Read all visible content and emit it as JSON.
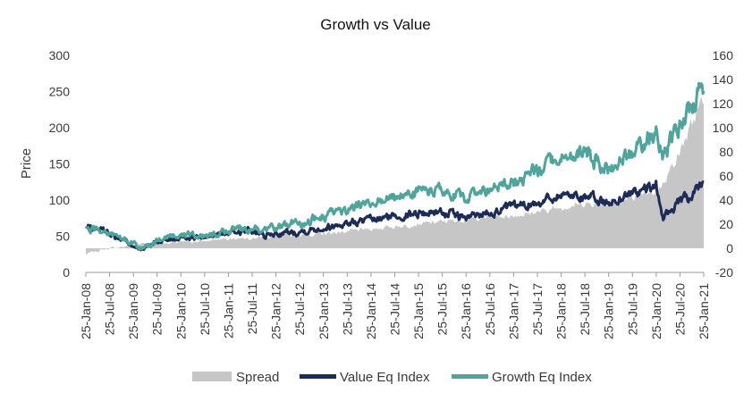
{
  "chart_data": {
    "type": "line",
    "title": "Growth vs Value",
    "ylabel": "Price",
    "y2label": "",
    "ylim": [
      0,
      300
    ],
    "y2lim": [
      -20,
      160
    ],
    "yticks": [
      0,
      50,
      100,
      150,
      200,
      250,
      300
    ],
    "y2ticks": [
      -20,
      0,
      20,
      40,
      60,
      80,
      100,
      120,
      140,
      160
    ],
    "xrange": [
      "2008-01-25",
      "2021-01-25"
    ],
    "xticks": [
      "25-Jan-08",
      "25-Jul-08",
      "25-Jan-09",
      "25-Jul-09",
      "25-Jan-10",
      "25-Jul-10",
      "25-Jan-11",
      "25-Jul-11",
      "25-Jan-12",
      "25-Jul-12",
      "25-Jan-13",
      "25-Jul-13",
      "25-Jan-14",
      "25-Jul-14",
      "25-Jan-15",
      "25-Jul-15",
      "25-Jan-16",
      "25-Jul-16",
      "25-Jan-17",
      "25-Jul-17",
      "25-Jan-18",
      "25-Jul-18",
      "25-Jan-19",
      "25-Jul-19",
      "25-Jan-20",
      "25-Jul-20",
      "25-Jan-21"
    ],
    "grid": false,
    "legend": "bottom",
    "colors": {
      "spread": "#c6c6c6",
      "value": "#1c2b57",
      "growth": "#4fa59c"
    },
    "series": [
      {
        "name": "Spread",
        "kind": "area",
        "axis": "right",
        "x": [
          "2008-01-25",
          "2008-04-25",
          "2008-07-25",
          "2008-10-25",
          "2009-01-25",
          "2009-03-10",
          "2009-07-25",
          "2010-01-25",
          "2010-07-25",
          "2011-01-25",
          "2011-07-25",
          "2012-01-25",
          "2012-07-25",
          "2013-01-25",
          "2013-07-25",
          "2014-01-25",
          "2014-07-25",
          "2015-01-25",
          "2015-07-25",
          "2016-01-25",
          "2016-07-25",
          "2017-01-25",
          "2017-07-25",
          "2018-01-25",
          "2018-07-25",
          "2019-01-25",
          "2019-07-25",
          "2020-01-25",
          "2020-03-20",
          "2020-07-25",
          "2020-10-25",
          "2021-01-25"
        ],
        "values": [
          -5,
          -2,
          0,
          1,
          3,
          4,
          4,
          5,
          6,
          8,
          9,
          10,
          11,
          12,
          14,
          16,
          18,
          20,
          22,
          24,
          26,
          27,
          30,
          34,
          37,
          38,
          42,
          46,
          55,
          80,
          102,
          125
        ]
      },
      {
        "name": "Value Eq Index",
        "kind": "line",
        "axis": "left",
        "x": [
          "2008-01-25",
          "2008-04-25",
          "2008-07-25",
          "2008-10-25",
          "2009-01-25",
          "2009-03-10",
          "2009-07-25",
          "2010-01-25",
          "2010-07-25",
          "2011-01-25",
          "2011-07-25",
          "2011-10-25",
          "2012-01-25",
          "2012-07-25",
          "2013-01-25",
          "2013-07-25",
          "2014-01-25",
          "2014-07-25",
          "2015-01-25",
          "2015-07-25",
          "2016-01-25",
          "2016-07-25",
          "2017-01-25",
          "2017-07-25",
          "2018-01-25",
          "2018-07-25",
          "2019-01-25",
          "2019-07-25",
          "2020-01-25",
          "2020-03-20",
          "2020-07-25",
          "2020-10-25",
          "2021-01-25"
        ],
        "values": [
          62,
          61,
          55,
          45,
          38,
          30,
          42,
          50,
          48,
          55,
          58,
          50,
          53,
          57,
          62,
          68,
          72,
          78,
          82,
          84,
          75,
          84,
          90,
          97,
          108,
          106,
          95,
          110,
          118,
          75,
          98,
          105,
          120
        ]
      },
      {
        "name": "Growth Eq Index",
        "kind": "line",
        "axis": "left",
        "x": [
          "2008-01-25",
          "2008-04-25",
          "2008-07-25",
          "2008-10-25",
          "2009-01-25",
          "2009-03-10",
          "2009-07-25",
          "2010-01-25",
          "2010-07-25",
          "2011-01-25",
          "2011-07-25",
          "2011-10-25",
          "2012-01-25",
          "2012-07-25",
          "2013-01-25",
          "2013-07-25",
          "2014-01-25",
          "2014-07-25",
          "2015-01-25",
          "2015-07-25",
          "2016-01-25",
          "2016-07-25",
          "2017-01-25",
          "2017-07-25",
          "2018-01-25",
          "2018-07-25",
          "2019-01-25",
          "2019-07-25",
          "2020-01-25",
          "2020-03-20",
          "2020-07-25",
          "2020-10-25",
          "2021-01-25"
        ],
        "values": [
          58,
          60,
          54,
          46,
          40,
          33,
          44,
          52,
          50,
          58,
          62,
          56,
          62,
          68,
          78,
          85,
          95,
          102,
          112,
          112,
          102,
          115,
          122,
          140,
          160,
          165,
          140,
          165,
          195,
          160,
          205,
          225,
          260
        ]
      }
    ]
  }
}
